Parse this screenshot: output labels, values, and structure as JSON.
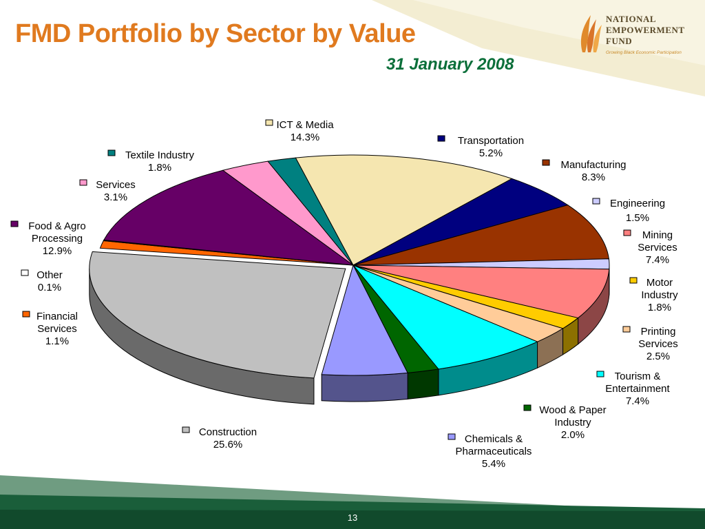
{
  "header": {
    "title": "FMD Portfolio by Sector by Value",
    "subtitle": "31 January 2008"
  },
  "logo": {
    "lines": [
      "National",
      "Empowerment",
      "Fund"
    ],
    "tagline": "Growing Black Economic Participation"
  },
  "footer": {
    "page_number": "13"
  },
  "colors": {
    "title": "#E07A1F",
    "subtitle": "#0B6F3A",
    "top_band": "#F1EBCB",
    "bottom_band_dark": "#155A36",
    "bottom_band_light": "#5E8F73"
  },
  "chart_data": {
    "type": "pie",
    "style": "3d-exploded",
    "series": [
      {
        "label": "ICT & Media",
        "value": 14.3,
        "value_label": "14.3%",
        "color": "#F5E6B0"
      },
      {
        "label": "Transportation",
        "value": 5.2,
        "value_label": "5.2%",
        "color": "#00007F"
      },
      {
        "label": "Manufacturing",
        "value": 8.3,
        "value_label": "8.3%",
        "color": "#993300"
      },
      {
        "label": "Engineering",
        "value": 1.5,
        "value_label": "1.5%",
        "color": "#CCCCFF"
      },
      {
        "label": "Mining Services",
        "value": 7.4,
        "value_label": "7.4%",
        "color": "#FF8080"
      },
      {
        "label": "Motor Industry",
        "value": 1.8,
        "value_label": "1.8%",
        "color": "#FFCC00"
      },
      {
        "label": "Printing Services",
        "value": 2.5,
        "value_label": "2.5%",
        "color": "#FFCC99"
      },
      {
        "label": "Tourism & Entertainment",
        "value": 7.4,
        "value_label": "7.4%",
        "color": "#00FFFF"
      },
      {
        "label": "Wood & Paper Industry",
        "value": 2.0,
        "value_label": "2.0%",
        "color": "#006600"
      },
      {
        "label": "Chemicals & Pharmaceuticals",
        "value": 5.4,
        "value_label": "5.4%",
        "color": "#9999FF"
      },
      {
        "label": "Construction",
        "value": 25.6,
        "value_label": "25.6%",
        "color": "#C0C0C0"
      },
      {
        "label": "Financial Services",
        "value": 1.1,
        "value_label": "1.1%",
        "color": "#FF6600"
      },
      {
        "label": "Other",
        "value": 0.1,
        "value_label": "0.1%",
        "color": "#FFFFFF"
      },
      {
        "label": "Food & Agro Processing",
        "value": 12.9,
        "value_label": "12.9%",
        "color": "#660066"
      },
      {
        "label": "Services",
        "value": 3.1,
        "value_label": "3.1%",
        "color": "#FF99CC"
      },
      {
        "label": "Textile Industry",
        "value": 1.8,
        "value_label": "1.8%",
        "color": "#008080"
      }
    ],
    "legend_labels": [
      {
        "lines": [
          "ICT & Media"
        ],
        "value": "14.3%"
      },
      {
        "lines": [
          "Transportation"
        ],
        "value": "5.2%"
      },
      {
        "lines": [
          "Manufacturing"
        ],
        "value": "8.3%"
      },
      {
        "lines": [
          "Engineering"
        ],
        "value": "1.5%"
      },
      {
        "lines": [
          "Mining",
          "Services"
        ],
        "value": "7.4%"
      },
      {
        "lines": [
          "Motor",
          "Industry"
        ],
        "value": "1.8%"
      },
      {
        "lines": [
          "Printing",
          "Services"
        ],
        "value": "2.5%"
      },
      {
        "lines": [
          "Tourism &",
          "Entertainment"
        ],
        "value": "7.4%"
      },
      {
        "lines": [
          "Wood & Paper",
          "Industry"
        ],
        "value": "2.0%"
      },
      {
        "lines": [
          "Chemicals &",
          "Pharmaceuticals"
        ],
        "value": "5.4%"
      },
      {
        "lines": [
          "Construction"
        ],
        "value": "25.6%"
      },
      {
        "lines": [
          "Financial",
          "Services"
        ],
        "value": "1.1%"
      },
      {
        "lines": [
          "Other"
        ],
        "value": "0.1%"
      },
      {
        "lines": [
          "Food & Agro",
          "Processing"
        ],
        "value": "12.9%"
      },
      {
        "lines": [
          "Services"
        ],
        "value": "3.1%"
      },
      {
        "lines": [
          "Textile Industry"
        ],
        "value": "1.8%"
      }
    ]
  }
}
